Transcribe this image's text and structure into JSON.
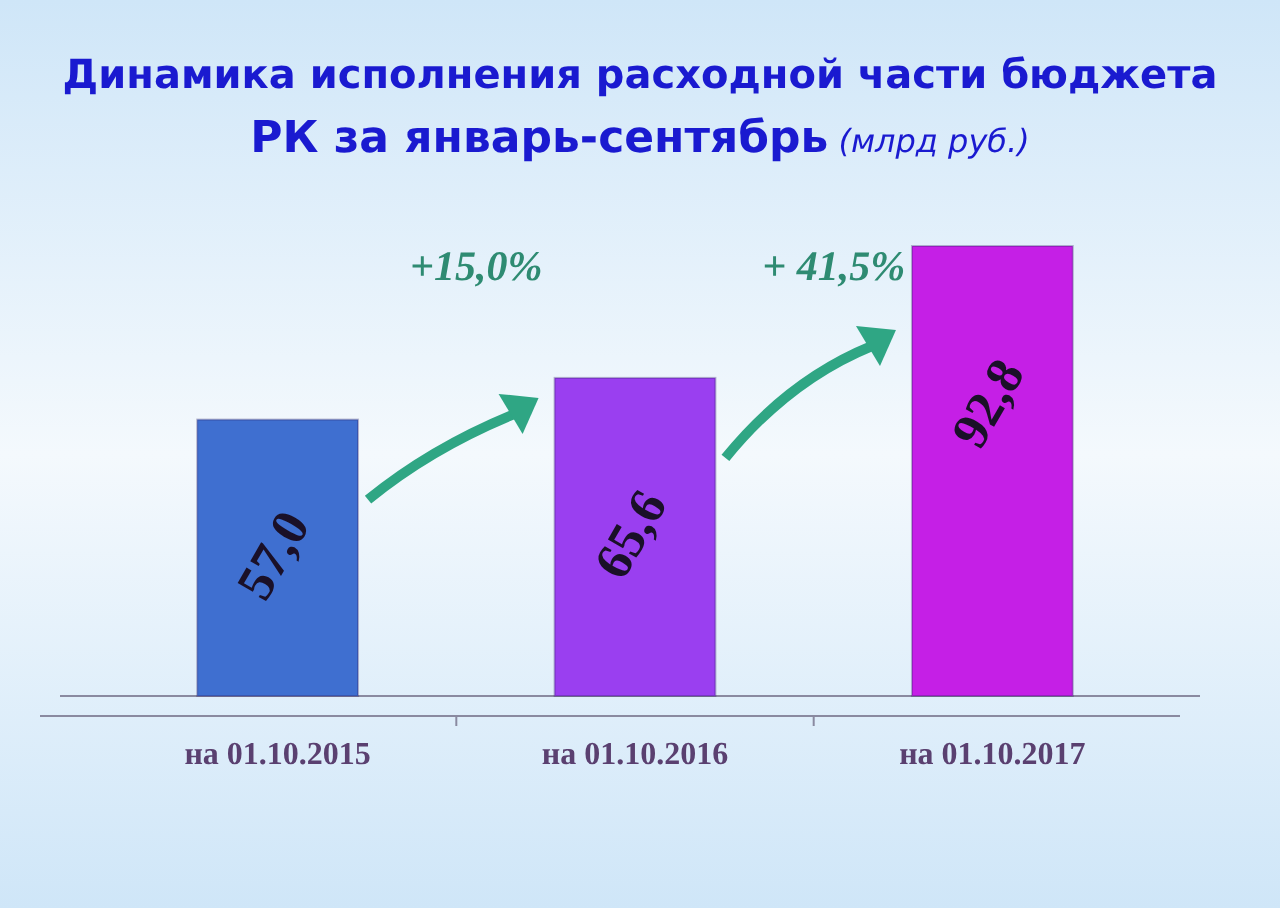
{
  "chart_data": {
    "type": "bar",
    "title": "Динамика исполнения расходной части бюджета РК за январь-сентябрь",
    "subtitle": "(млрд руб.)",
    "categories": [
      "на 01.10.2015",
      "на 01.10.2016",
      "на 01.10.2017"
    ],
    "values": [
      57.0,
      65.6,
      92.8
    ],
    "value_labels": [
      "57,0",
      "65,6",
      "92,8"
    ],
    "colors": [
      "#3f6fd0",
      "#9a3ff0",
      "#c51fe6"
    ],
    "annotations": [
      "+15,0%",
      "+ 41,5%"
    ]
  }
}
